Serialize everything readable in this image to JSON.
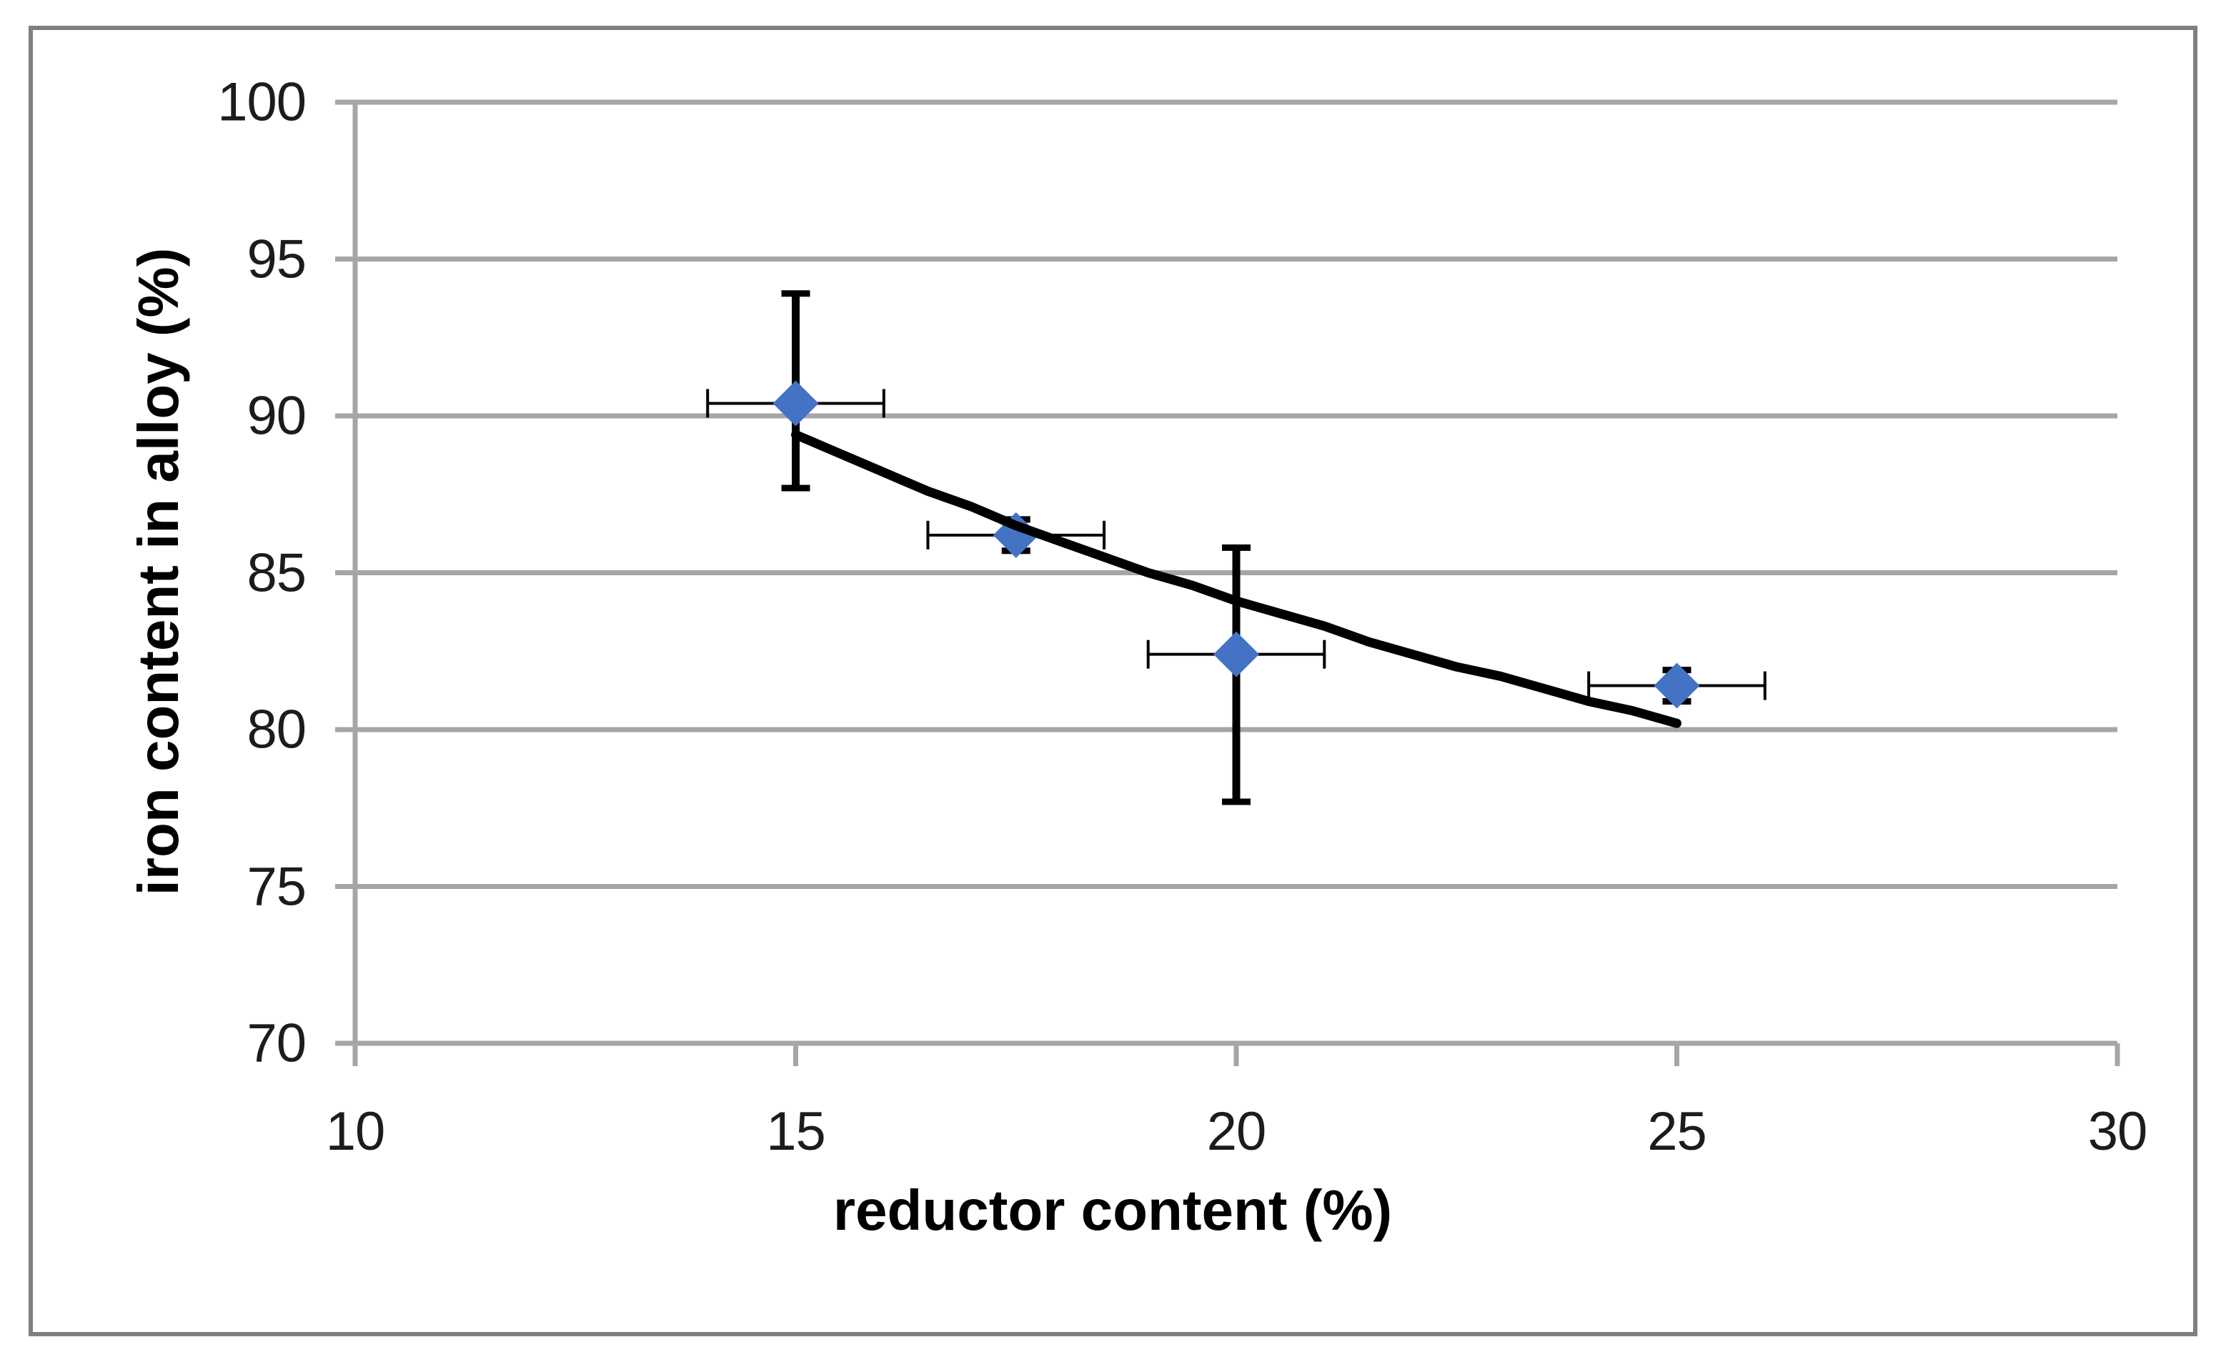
{
  "figure": {
    "background": "#FFFFFF",
    "frame_color": "#7F7F7F"
  },
  "chart_data": {
    "type": "scatter",
    "title": "",
    "xlabel": "reductor content (%)",
    "ylabel": "iron content in alloy (%)",
    "xlim": [
      10,
      30
    ],
    "ylim": [
      70,
      100
    ],
    "x_ticks": [
      10,
      15,
      20,
      25,
      30
    ],
    "y_ticks": [
      70,
      75,
      80,
      85,
      90,
      95,
      100
    ],
    "grid": "horizontal",
    "legend": "none",
    "colors": {
      "marker": "#4472C4",
      "gridline": "#A6A6A6",
      "axis": "#A6A6A6",
      "error_bar": "#000000",
      "trendline": "#000000",
      "tick_text": "#1C1C1C",
      "title_text": "#000000"
    },
    "series": [
      {
        "marker": "diamond",
        "color": "#4472C4",
        "points": [
          {
            "x": 15,
            "y": 90.4,
            "x_err": 1.0,
            "y_err_up": 3.5,
            "y_err_down": 2.7
          },
          {
            "x": 17.5,
            "y": 86.2,
            "x_err": 1.0,
            "y_err_up": 0.5,
            "y_err_down": 0.5
          },
          {
            "x": 20,
            "y": 82.4,
            "x_err": 1.0,
            "y_err_up": 3.4,
            "y_err_down": 4.7
          },
          {
            "x": 25,
            "y": 81.4,
            "x_err": 1.0,
            "y_err_up": 0.5,
            "y_err_down": 0.5
          }
        ]
      }
    ],
    "trendline": {
      "type": "power-fit",
      "color": "#000000",
      "x_start": 15,
      "x_end": 25,
      "points": [
        [
          15,
          89.4
        ],
        [
          15.5,
          88.8
        ],
        [
          16,
          88.2
        ],
        [
          16.5,
          87.6
        ],
        [
          17,
          87.1
        ],
        [
          17.5,
          86.5
        ],
        [
          18,
          86.0
        ],
        [
          18.5,
          85.5
        ],
        [
          19,
          85.0
        ],
        [
          19.5,
          84.6
        ],
        [
          20,
          84.1
        ],
        [
          20.5,
          83.7
        ],
        [
          21,
          83.3
        ],
        [
          21.5,
          82.8
        ],
        [
          22,
          82.4
        ],
        [
          22.5,
          82.0
        ],
        [
          23,
          81.7
        ],
        [
          23.5,
          81.3
        ],
        [
          24,
          80.9
        ],
        [
          24.5,
          80.6
        ],
        [
          25,
          80.2
        ]
      ]
    }
  }
}
